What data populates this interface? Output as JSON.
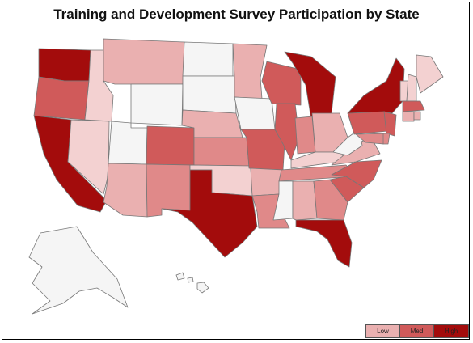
{
  "title": "Training and Development Survey Participation by State",
  "colors": {
    "none": "#f5f5f5",
    "low_light": "#f3d1d1",
    "low": "#eab0b0",
    "med_light": "#e08989",
    "med": "#d05a5a",
    "high": "#a30c0c",
    "stroke": "#777777"
  },
  "legend": [
    {
      "label": "Low",
      "color": "#eab0b0"
    },
    {
      "label": "Med",
      "color": "#d05a5a"
    },
    {
      "label": "High",
      "color": "#a30c0c"
    }
  ],
  "states": [
    {
      "name": "Washington",
      "level": "high"
    },
    {
      "name": "Oregon",
      "level": "med"
    },
    {
      "name": "California",
      "level": "high"
    },
    {
      "name": "Idaho",
      "level": "low_light"
    },
    {
      "name": "Nevada",
      "level": "low_light"
    },
    {
      "name": "Montana",
      "level": "low"
    },
    {
      "name": "Wyoming",
      "level": "none"
    },
    {
      "name": "Utah",
      "level": "none"
    },
    {
      "name": "Arizona",
      "level": "low"
    },
    {
      "name": "Colorado",
      "level": "med"
    },
    {
      "name": "New Mexico",
      "level": "med_light"
    },
    {
      "name": "North Dakota",
      "level": "none"
    },
    {
      "name": "South Dakota",
      "level": "none"
    },
    {
      "name": "Nebraska",
      "level": "low"
    },
    {
      "name": "Kansas",
      "level": "med_light"
    },
    {
      "name": "Oklahoma",
      "level": "low_light"
    },
    {
      "name": "Texas",
      "level": "high"
    },
    {
      "name": "Minnesota",
      "level": "low"
    },
    {
      "name": "Iowa",
      "level": "none"
    },
    {
      "name": "Missouri",
      "level": "med"
    },
    {
      "name": "Arkansas",
      "level": "low"
    },
    {
      "name": "Louisiana",
      "level": "med_light"
    },
    {
      "name": "Wisconsin",
      "level": "med"
    },
    {
      "name": "Illinois",
      "level": "med"
    },
    {
      "name": "Michigan",
      "level": "high"
    },
    {
      "name": "Indiana",
      "level": "med_light"
    },
    {
      "name": "Ohio",
      "level": "low"
    },
    {
      "name": "Kentucky",
      "level": "low_light"
    },
    {
      "name": "Tennessee",
      "level": "med_light"
    },
    {
      "name": "Mississippi",
      "level": "none"
    },
    {
      "name": "Alabama",
      "level": "low"
    },
    {
      "name": "Georgia",
      "level": "med_light"
    },
    {
      "name": "Florida",
      "level": "high"
    },
    {
      "name": "South Carolina",
      "level": "med"
    },
    {
      "name": "North Carolina",
      "level": "med"
    },
    {
      "name": "Virginia",
      "level": "low"
    },
    {
      "name": "West Virginia",
      "level": "none"
    },
    {
      "name": "Pennsylvania",
      "level": "med"
    },
    {
      "name": "New York",
      "level": "high"
    },
    {
      "name": "New Jersey",
      "level": "med"
    },
    {
      "name": "Maryland",
      "level": "med_light"
    },
    {
      "name": "Delaware",
      "level": "med_light"
    },
    {
      "name": "Vermont",
      "level": "low_light"
    },
    {
      "name": "New Hampshire",
      "level": "low_light"
    },
    {
      "name": "Maine",
      "level": "low_light"
    },
    {
      "name": "Massachusetts",
      "level": "med"
    },
    {
      "name": "Connecticut",
      "level": "low"
    },
    {
      "name": "Rhode Island",
      "level": "low"
    },
    {
      "name": "Alaska",
      "level": "none"
    },
    {
      "name": "Hawaii",
      "level": "none"
    }
  ]
}
